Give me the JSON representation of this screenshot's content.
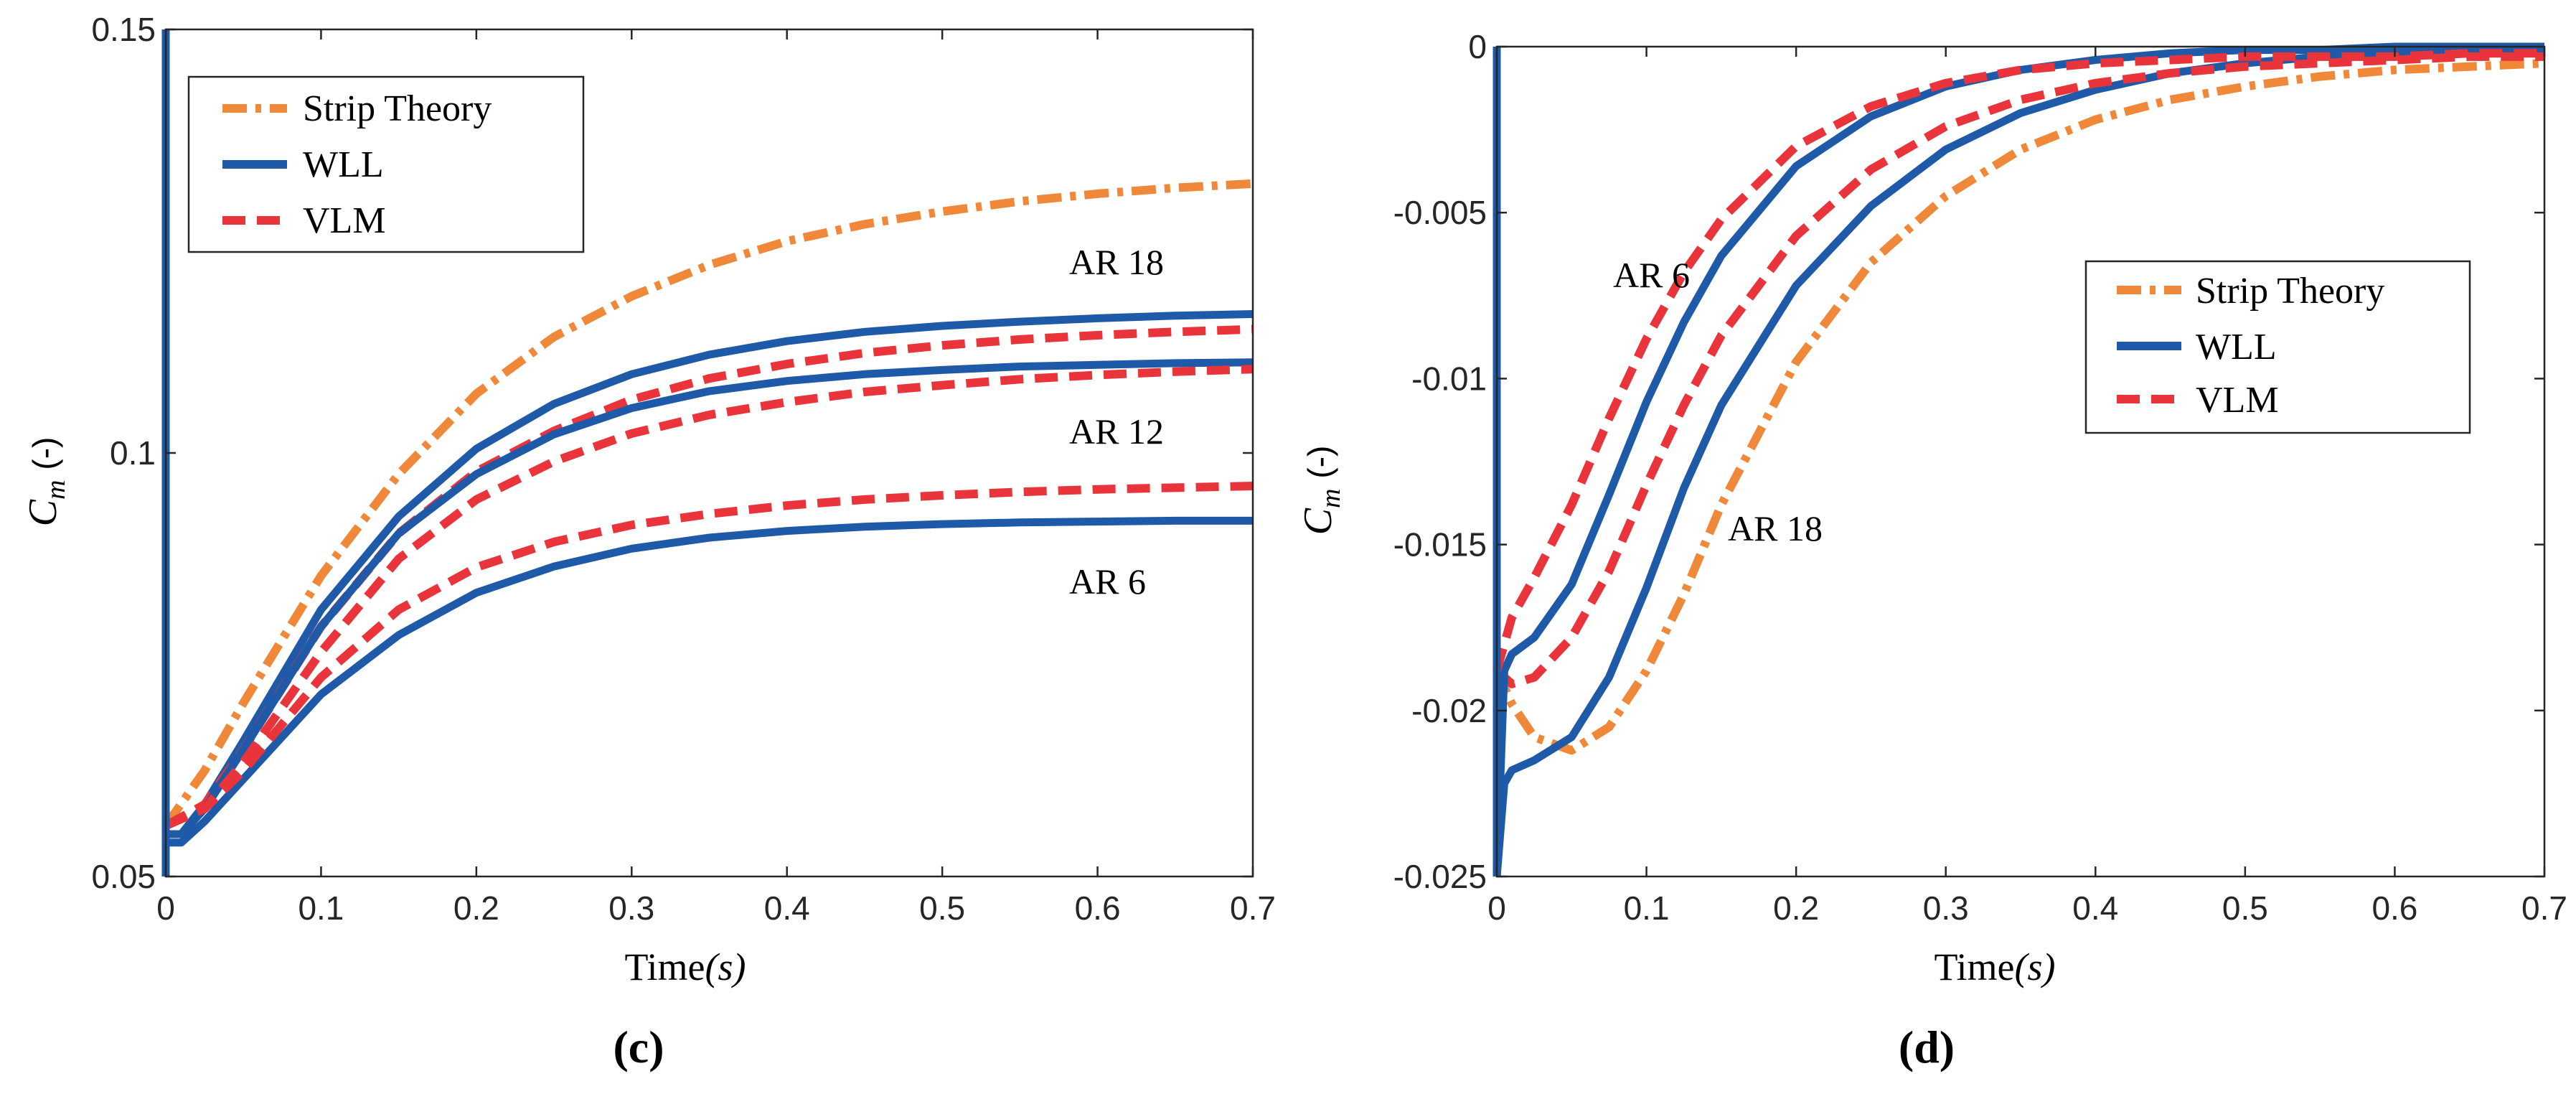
{
  "chart_data": [
    {
      "type": "line",
      "panel_label": "(c)",
      "xlabel": "Time",
      "xlabel_unit": "(s)",
      "ylabel_main": "C",
      "ylabel_sub": "m",
      "ylabel_unit": "(-)",
      "xlim": [
        0,
        0.7
      ],
      "ylim": [
        0.05,
        0.15
      ],
      "xticks": [
        0,
        0.1,
        0.2,
        0.3,
        0.4,
        0.5,
        0.6,
        0.7
      ],
      "xtick_labels": [
        "0",
        "0.1",
        "0.2",
        "0.3",
        "0.4",
        "0.5",
        "0.6",
        "0.7"
      ],
      "yticks": [
        0.05,
        0.1,
        0.15
      ],
      "ytick_labels": [
        "0.05",
        "0.1",
        "0.15"
      ],
      "grid": false,
      "legend_position": "top-left",
      "legend": [
        "Strip Theory",
        "WLL",
        "VLM"
      ],
      "annotations": [
        {
          "text": "AR 18",
          "x": 0.62,
          "y": 0.1225
        },
        {
          "text": "AR 12",
          "x": 0.62,
          "y": 0.1028
        },
        {
          "text": "AR 6",
          "x": 0.62,
          "y": 0.0855
        }
      ],
      "series": [
        {
          "name": "Strip Theory",
          "style": "dashdot",
          "color": "#f0883a",
          "x": [
            0,
            0.025,
            0.05,
            0.1,
            0.15,
            0.2,
            0.25,
            0.3,
            0.35,
            0.4,
            0.45,
            0.5,
            0.55,
            0.6,
            0.65,
            0.7
          ],
          "y": [
            0.056,
            0.0625,
            0.0705,
            0.0855,
            0.0975,
            0.107,
            0.1137,
            0.1185,
            0.1222,
            0.125,
            0.127,
            0.1285,
            0.1297,
            0.1306,
            0.1313,
            0.1318
          ]
        },
        {
          "name": "WLL AR 18",
          "style": "solid",
          "color": "#1f5aa8",
          "x": [
            0,
            0.01,
            0.025,
            0.05,
            0.1,
            0.15,
            0.2,
            0.25,
            0.3,
            0.35,
            0.4,
            0.45,
            0.5,
            0.55,
            0.6,
            0.65,
            0.7
          ],
          "y": [
            0.055,
            0.055,
            0.0585,
            0.066,
            0.0815,
            0.0925,
            0.1005,
            0.1058,
            0.1093,
            0.1116,
            0.1132,
            0.1143,
            0.115,
            0.1155,
            0.1159,
            0.1162,
            0.1164
          ]
        },
        {
          "name": "VLM AR 18",
          "style": "dashed",
          "color": "#e8343a",
          "x": [
            0,
            0.025,
            0.05,
            0.1,
            0.15,
            0.2,
            0.25,
            0.3,
            0.35,
            0.4,
            0.45,
            0.5,
            0.55,
            0.6,
            0.65,
            0.7
          ],
          "y": [
            0.056,
            0.0585,
            0.065,
            0.0795,
            0.0905,
            0.0978,
            0.1026,
            0.1063,
            0.1088,
            0.1105,
            0.1118,
            0.1127,
            0.1134,
            0.1139,
            0.1143,
            0.1146
          ]
        },
        {
          "name": "WLL AR 12",
          "style": "solid",
          "color": "#1f5aa8",
          "x": [
            0,
            0.01,
            0.025,
            0.05,
            0.1,
            0.15,
            0.2,
            0.25,
            0.3,
            0.35,
            0.4,
            0.45,
            0.5,
            0.55,
            0.6,
            0.65,
            0.7
          ],
          "y": [
            0.055,
            0.055,
            0.058,
            0.065,
            0.0795,
            0.0905,
            0.0975,
            0.1022,
            0.1053,
            0.1073,
            0.1085,
            0.1093,
            0.1098,
            0.1102,
            0.1104,
            0.1106,
            0.1107
          ]
        },
        {
          "name": "VLM AR 12",
          "style": "dashed",
          "color": "#e8343a",
          "x": [
            0,
            0.025,
            0.05,
            0.1,
            0.15,
            0.2,
            0.25,
            0.3,
            0.35,
            0.4,
            0.45,
            0.5,
            0.55,
            0.6,
            0.65,
            0.7
          ],
          "y": [
            0.056,
            0.058,
            0.0635,
            0.0765,
            0.0875,
            0.0945,
            0.099,
            0.1023,
            0.1045,
            0.106,
            0.1072,
            0.108,
            0.1087,
            0.1092,
            0.1096,
            0.1099
          ]
        },
        {
          "name": "WLL AR 6",
          "style": "solid",
          "color": "#1f5aa8",
          "x": [
            0,
            0.01,
            0.025,
            0.05,
            0.1,
            0.15,
            0.2,
            0.25,
            0.3,
            0.35,
            0.4,
            0.45,
            0.5,
            0.55,
            0.6,
            0.65,
            0.7
          ],
          "y": [
            0.054,
            0.054,
            0.0565,
            0.0615,
            0.0715,
            0.0785,
            0.0835,
            0.0866,
            0.0887,
            0.09,
            0.0908,
            0.0913,
            0.0916,
            0.0918,
            0.0919,
            0.092,
            0.092
          ]
        },
        {
          "name": "VLM AR 6",
          "style": "dashed",
          "color": "#e8343a",
          "x": [
            0,
            0.025,
            0.05,
            0.1,
            0.15,
            0.2,
            0.25,
            0.3,
            0.35,
            0.4,
            0.45,
            0.5,
            0.55,
            0.6,
            0.65,
            0.7
          ],
          "y": [
            0.056,
            0.058,
            0.0625,
            0.0735,
            0.0815,
            0.0865,
            0.0895,
            0.0915,
            0.0928,
            0.0938,
            0.0945,
            0.095,
            0.0954,
            0.0957,
            0.0959,
            0.0961
          ]
        },
        {
          "name": "WLL initial",
          "style": "solid",
          "color": "#1f5aa8",
          "x": [
            0,
            0
          ],
          "y": [
            0.05,
            0.15
          ]
        }
      ]
    },
    {
      "type": "line",
      "panel_label": "(d)",
      "xlabel": "Time",
      "xlabel_unit": "(s)",
      "ylabel_main": "C",
      "ylabel_sub": "m",
      "ylabel_unit": "(-)",
      "xlim": [
        0,
        0.7
      ],
      "ylim": [
        -0.025,
        0
      ],
      "xticks": [
        0,
        0.1,
        0.2,
        0.3,
        0.4,
        0.5,
        0.6,
        0.7
      ],
      "xtick_labels": [
        "0",
        "0.1",
        "0.2",
        "0.3",
        "0.4",
        "0.5",
        "0.6",
        "0.7"
      ],
      "yticks": [
        -0.025,
        -0.02,
        -0.015,
        -0.01,
        -0.005,
        0
      ],
      "ytick_labels": [
        "-0.025",
        "-0.02",
        "-0.015",
        "-0.01",
        "-0.005",
        "0"
      ],
      "grid": false,
      "legend_position": "center-right",
      "legend": [
        "Strip Theory",
        "WLL",
        "VLM"
      ],
      "annotations": [
        {
          "text": "AR 6",
          "x": 0.078,
          "y": -0.0072
        },
        {
          "text": "AR 18",
          "x": 0.155,
          "y": -0.0148
        }
      ],
      "series": [
        {
          "name": "Strip Theory",
          "style": "dashdot",
          "color": "#f0883a",
          "x": [
            0,
            0.01,
            0.025,
            0.05,
            0.075,
            0.1,
            0.125,
            0.15,
            0.2,
            0.25,
            0.3,
            0.35,
            0.4,
            0.45,
            0.5,
            0.55,
            0.6,
            0.65,
            0.7
          ],
          "y": [
            -0.0188,
            -0.0198,
            -0.0208,
            -0.0212,
            -0.0205,
            -0.0188,
            -0.0165,
            -0.0138,
            -0.0095,
            -0.0065,
            -0.0045,
            -0.0031,
            -0.0022,
            -0.0016,
            -0.0012,
            -0.0009,
            -0.0007,
            -0.0006,
            -0.0005
          ]
        },
        {
          "name": "WLL AR 18",
          "style": "solid",
          "color": "#1f5aa8",
          "x": [
            0,
            0.005,
            0.01,
            0.025,
            0.05,
            0.075,
            0.1,
            0.125,
            0.15,
            0.2,
            0.25,
            0.3,
            0.35,
            0.4,
            0.45,
            0.5,
            0.55,
            0.6,
            0.65,
            0.7
          ],
          "y": [
            -0.025,
            -0.0222,
            -0.0218,
            -0.0215,
            -0.0208,
            -0.019,
            -0.0163,
            -0.0133,
            -0.0108,
            -0.0072,
            -0.0048,
            -0.0031,
            -0.002,
            -0.0013,
            -0.0008,
            -0.0005,
            -0.0003,
            -0.0002,
            -0.0001,
            -0.0001
          ]
        },
        {
          "name": "VLM AR 18",
          "style": "dashed",
          "color": "#e8343a",
          "x": [
            0,
            0.01,
            0.025,
            0.05,
            0.075,
            0.1,
            0.125,
            0.15,
            0.2,
            0.25,
            0.3,
            0.35,
            0.4,
            0.45,
            0.5,
            0.55,
            0.6,
            0.65,
            0.7
          ],
          "y": [
            -0.0188,
            -0.0192,
            -0.019,
            -0.0178,
            -0.0158,
            -0.0132,
            -0.0108,
            -0.0087,
            -0.0057,
            -0.0037,
            -0.0024,
            -0.0016,
            -0.0011,
            -0.0008,
            -0.0006,
            -0.0005,
            -0.0004,
            -0.0003,
            -0.0003
          ]
        },
        {
          "name": "WLL AR 6",
          "style": "solid",
          "color": "#1f5aa8",
          "x": [
            0,
            0.005,
            0.01,
            0.025,
            0.05,
            0.075,
            0.1,
            0.125,
            0.15,
            0.2,
            0.25,
            0.3,
            0.35,
            0.4,
            0.45,
            0.5,
            0.55,
            0.6,
            0.65,
            0.7
          ],
          "y": [
            -0.025,
            -0.0188,
            -0.0183,
            -0.0178,
            -0.0162,
            -0.0135,
            -0.0107,
            -0.0083,
            -0.0063,
            -0.0036,
            -0.0021,
            -0.0012,
            -0.0007,
            -0.0004,
            -0.0002,
            -0.0001,
            -0.0001,
            0,
            0,
            0
          ]
        },
        {
          "name": "VLM AR 6",
          "style": "dashed",
          "color": "#e8343a",
          "x": [
            0,
            0.01,
            0.025,
            0.05,
            0.075,
            0.1,
            0.125,
            0.15,
            0.2,
            0.25,
            0.3,
            0.35,
            0.4,
            0.45,
            0.5,
            0.55,
            0.6,
            0.65,
            0.7
          ],
          "y": [
            -0.0188,
            -0.0172,
            -0.016,
            -0.0138,
            -0.0112,
            -0.0088,
            -0.0068,
            -0.0052,
            -0.003,
            -0.0018,
            -0.0011,
            -0.0007,
            -0.0005,
            -0.0004,
            -0.0003,
            -0.0003,
            -0.0003,
            -0.0002,
            -0.0002
          ]
        },
        {
          "name": "WLL initial",
          "style": "solid",
          "color": "#1f5aa8",
          "x": [
            0,
            0
          ],
          "y": [
            -0.025,
            0
          ]
        }
      ]
    }
  ]
}
